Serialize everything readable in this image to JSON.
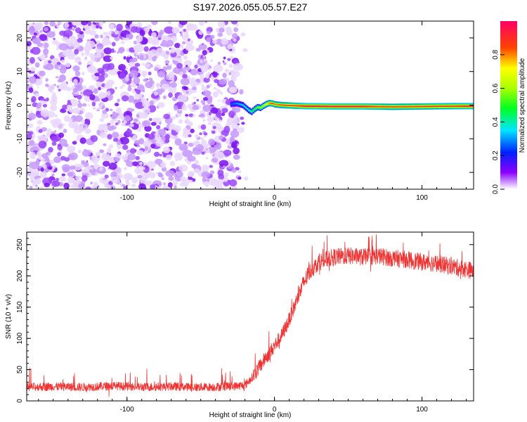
{
  "title": "S197.2026.055.05.57.E27",
  "chart_data": [
    {
      "type": "heatmap",
      "xlabel": "Height of straight line (km)",
      "ylabel": "Frequency (Hz)",
      "xlim": [
        -168,
        135
      ],
      "ylim": [
        -25,
        25
      ],
      "x_ticks": [
        -100,
        0,
        100
      ],
      "y_ticks": [
        -20,
        -10,
        0,
        10,
        20
      ],
      "grid": false,
      "noise_region_x": [
        -168,
        -25
      ],
      "signal_band": {
        "x": [
          -30,
          -26,
          -22,
          -18,
          -16,
          -14,
          -12,
          -10,
          -8,
          -6,
          -4,
          -2,
          0,
          5,
          20,
          40,
          60,
          80,
          100,
          120,
          135
        ],
        "freq_hz": [
          0.3,
          0.5,
          0.0,
          -1.5,
          -2.0,
          -1.2,
          -0.6,
          -0.8,
          -0.2,
          0.3,
          0.6,
          0.5,
          0.2,
          0.0,
          -0.3,
          -0.4,
          -0.4,
          -0.5,
          -0.4,
          -0.3,
          -0.3
        ],
        "peak_amplitude": [
          0.25,
          0.3,
          0.35,
          0.4,
          0.45,
          0.5,
          0.55,
          0.6,
          0.65,
          0.7,
          0.8,
          0.85,
          0.8,
          0.85,
          0.95,
          0.95,
          0.95,
          0.85,
          0.9,
          0.9,
          0.95
        ]
      },
      "colorbar": {
        "label": "Normalized spectral amplitude",
        "range": [
          0,
          1
        ],
        "ticks": [
          "0.0",
          "0.2",
          "0.4",
          "0.6",
          "0.8"
        ]
      }
    },
    {
      "type": "line",
      "xlabel": "Height of straight line (km)",
      "ylabel": "SNR (10 * v/v)",
      "xlim": [
        -168,
        135
      ],
      "ylim": [
        0,
        270
      ],
      "x_ticks": [
        -100,
        0,
        100
      ],
      "y_ticks": [
        0,
        50,
        100,
        150,
        200,
        250
      ],
      "grid": false,
      "series": [
        {
          "color": "#ee3333",
          "x": [
            -168,
            -150,
            -130,
            -110,
            -90,
            -70,
            -50,
            -30,
            -20,
            -15,
            -10,
            -5,
            0,
            5,
            10,
            15,
            20,
            25,
            30,
            40,
            50,
            60,
            70,
            80,
            90,
            100,
            110,
            120,
            135
          ],
          "values": [
            22,
            23,
            22,
            24,
            22,
            23,
            22,
            23,
            25,
            38,
            55,
            72,
            88,
            105,
            130,
            160,
            190,
            210,
            222,
            230,
            232,
            230,
            232,
            228,
            226,
            222,
            220,
            215,
            208
          ]
        }
      ]
    }
  ]
}
